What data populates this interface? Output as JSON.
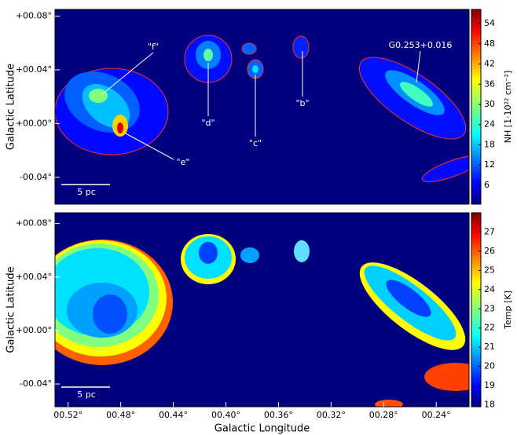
{
  "chart_data": [
    {
      "type": "heatmap",
      "ylabel": "Galactic Latitude",
      "xlim": [
        0.53,
        0.215
      ],
      "ylim": [
        -0.06,
        0.085
      ],
      "yticks": [
        {
          "value": 0.08,
          "label": "+00.08°"
        },
        {
          "value": 0.04,
          "label": "+00.04°"
        },
        {
          "value": 0,
          "label": "+00.00°"
        },
        {
          "value": -0.04,
          "label": "-00.04°"
        }
      ],
      "colorbar": {
        "label": "NH [1·10²² cm⁻²]",
        "lim": [
          0.4,
          58.2
        ],
        "ticks": [
          6,
          12,
          18,
          24,
          30,
          36,
          42,
          48,
          54
        ]
      },
      "annotations": [
        "\"f\"",
        "\"d\"",
        "\"c\"",
        "\"b\"",
        "\"e\"",
        "G0.253+0.016"
      ],
      "scale_bar": "5 pc"
    },
    {
      "type": "heatmap",
      "ylabel": "Galactic Latitude",
      "xlabel": "Galactic Longitude",
      "xlim": [
        0.53,
        0.215
      ],
      "ylim": [
        -0.057,
        0.088
      ],
      "xticks": [
        {
          "value": 0.52,
          "label": "00.52°"
        },
        {
          "value": 0.48,
          "label": "00.48°"
        },
        {
          "value": 0.44,
          "label": "00.44°"
        },
        {
          "value": 0.4,
          "label": "00.40°"
        },
        {
          "value": 0.36,
          "label": "00.36°"
        },
        {
          "value": 0.32,
          "label": "00.32°"
        },
        {
          "value": 0.28,
          "label": "00.28°"
        },
        {
          "value": 0.24,
          "label": "00.24°"
        }
      ],
      "yticks": [
        {
          "value": 0.08,
          "label": "+00.08°"
        },
        {
          "value": 0.04,
          "label": "+00.04°"
        },
        {
          "value": 0,
          "label": "+00.00°"
        },
        {
          "value": -0.04,
          "label": "-00.04°"
        }
      ],
      "colorbar": {
        "label": "Temp [K]",
        "lim": [
          17.9,
          28.0
        ],
        "ticks": [
          18,
          19,
          20,
          21,
          22,
          23,
          24,
          25,
          26,
          27
        ]
      },
      "scale_bar": "5 pc"
    }
  ]
}
